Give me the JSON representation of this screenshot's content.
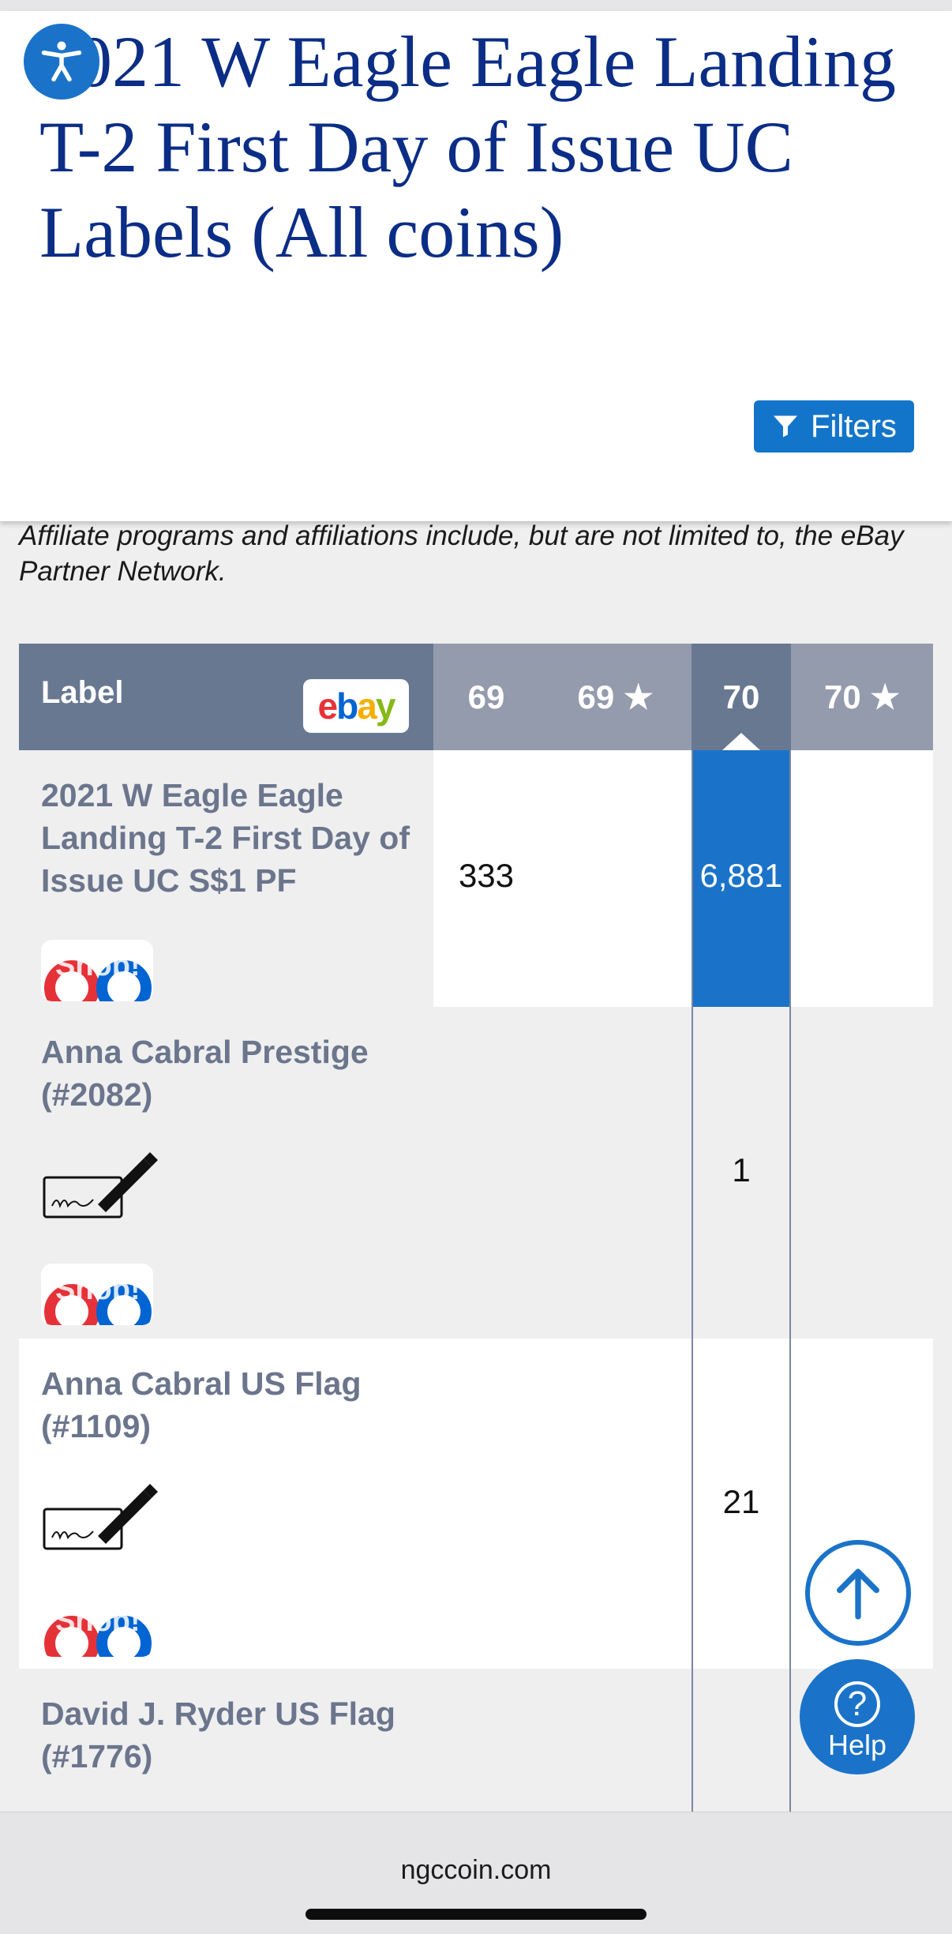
{
  "page": {
    "title": "2021 W Eagle Eagle Landing T-2 First Day of Issue UC Labels (All coins)",
    "filters_label": "Filters",
    "affiliate_note": "Affiliate programs and affiliations include, but are not limited to, the eBay Partner Network."
  },
  "table": {
    "header": {
      "label": "Label",
      "ebay_logo_text": "ebay",
      "grades": [
        "69",
        "69 ★",
        "70",
        "70 ★"
      ],
      "active_grade": "70"
    },
    "rows": [
      {
        "name": "2021 W Eagle Eagle Landing T-2 First Day of Issue UC S$1 PF",
        "col_69": "333",
        "col_70": "6,881",
        "shop": "Shop!"
      },
      {
        "name": "Anna Cabral Prestige (#2082)",
        "col_70": "1",
        "shop": "Shop!"
      },
      {
        "name": "Anna Cabral US Flag (#1109)",
        "col_70": "21",
        "shop": "Shop!"
      },
      {
        "name": "David J. Ryder US Flag (#1776)"
      }
    ]
  },
  "help_label": "Help",
  "browser": {
    "domain": "ngccoin.com"
  },
  "colors": {
    "title": "#0b2d86",
    "accent": "#1375c9",
    "header_dark": "#687891",
    "header_light": "#939bad"
  }
}
